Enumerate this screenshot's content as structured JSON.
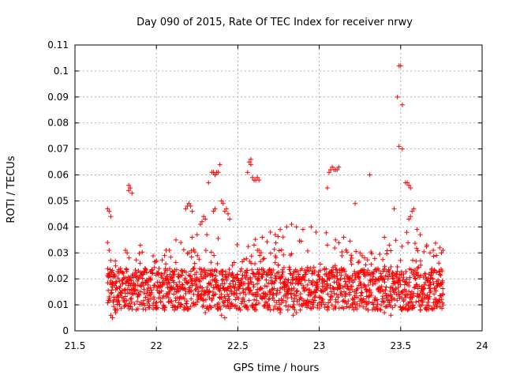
{
  "chart_data": {
    "type": "scatter",
    "title": "Day 090 of 2015, Rate Of TEC Index for receiver nrwy",
    "xlabel": "GPS time / hours",
    "ylabel": "ROTI / TECUs",
    "xlim": [
      21.5,
      24
    ],
    "ylim": [
      0,
      0.11
    ],
    "xticks": [
      21.5,
      22,
      22.5,
      23,
      23.5,
      24
    ],
    "xtick_labels": [
      "21.5",
      "22",
      "22.5",
      "23",
      "23.5",
      "24"
    ],
    "yticks": [
      0,
      0.01,
      0.02,
      0.03,
      0.04,
      0.05,
      0.06,
      0.07,
      0.08,
      0.09,
      0.1,
      0.11
    ],
    "ytick_labels": [
      "0",
      "0.01",
      "0.02",
      "0.03",
      "0.04",
      "0.05",
      "0.06",
      "0.07",
      "0.08",
      "0.09",
      "0.1",
      "0.11"
    ],
    "grid": true,
    "marker": "+",
    "color": "#ff0000",
    "x_range_of_points": [
      21.7,
      23.76
    ],
    "series": [
      {
        "name": "ROTI",
        "points": [
          [
            21.7,
            0.047
          ],
          [
            21.71,
            0.046
          ],
          [
            21.72,
            0.044
          ],
          [
            21.7,
            0.034
          ],
          [
            21.71,
            0.031
          ],
          [
            21.83,
            0.056
          ],
          [
            21.84,
            0.055
          ],
          [
            21.83,
            0.054
          ],
          [
            21.85,
            0.053
          ],
          [
            21.82,
            0.03
          ],
          [
            21.81,
            0.031
          ],
          [
            22.19,
            0.048
          ],
          [
            22.2,
            0.049
          ],
          [
            22.21,
            0.048
          ],
          [
            22.18,
            0.047
          ],
          [
            22.22,
            0.046
          ],
          [
            22.29,
            0.044
          ],
          [
            22.3,
            0.043
          ],
          [
            22.28,
            0.042
          ],
          [
            22.27,
            0.041
          ],
          [
            22.32,
            0.057
          ],
          [
            22.34,
            0.061
          ],
          [
            22.35,
            0.061
          ],
          [
            22.36,
            0.06
          ],
          [
            22.37,
            0.061
          ],
          [
            22.38,
            0.061
          ],
          [
            22.39,
            0.064
          ],
          [
            22.4,
            0.05
          ],
          [
            22.41,
            0.049
          ],
          [
            22.42,
            0.046
          ],
          [
            22.43,
            0.047
          ],
          [
            22.44,
            0.045
          ],
          [
            22.45,
            0.043
          ],
          [
            22.36,
            0.047
          ],
          [
            22.35,
            0.046
          ],
          [
            22.56,
            0.061
          ],
          [
            22.57,
            0.065
          ],
          [
            22.58,
            0.066
          ],
          [
            22.58,
            0.064
          ],
          [
            22.59,
            0.059
          ],
          [
            22.6,
            0.058
          ],
          [
            22.61,
            0.058
          ],
          [
            22.62,
            0.059
          ],
          [
            22.63,
            0.058
          ],
          [
            23.05,
            0.055
          ],
          [
            23.06,
            0.061
          ],
          [
            23.07,
            0.062
          ],
          [
            23.08,
            0.063
          ],
          [
            23.09,
            0.062
          ],
          [
            23.1,
            0.062
          ],
          [
            23.11,
            0.062
          ],
          [
            23.12,
            0.063
          ],
          [
            23.22,
            0.049
          ],
          [
            23.31,
            0.06
          ],
          [
            23.46,
            0.047
          ],
          [
            23.49,
            0.102
          ],
          [
            23.5,
            0.102
          ],
          [
            23.48,
            0.09
          ],
          [
            23.49,
            0.071
          ],
          [
            23.51,
            0.07
          ],
          [
            23.51,
            0.087
          ],
          [
            23.53,
            0.057
          ],
          [
            23.54,
            0.057
          ],
          [
            23.55,
            0.056
          ],
          [
            23.56,
            0.055
          ],
          [
            23.58,
            0.047
          ],
          [
            23.57,
            0.046
          ],
          [
            23.56,
            0.044
          ],
          [
            23.55,
            0.043
          ],
          [
            22.8,
            0.04
          ],
          [
            22.83,
            0.041
          ],
          [
            22.86,
            0.04
          ],
          [
            22.9,
            0.039
          ],
          [
            22.95,
            0.04
          ],
          [
            22.98,
            0.038
          ],
          [
            22.7,
            0.038
          ],
          [
            22.73,
            0.037
          ],
          [
            22.76,
            0.039
          ],
          [
            22.65,
            0.036
          ],
          [
            22.6,
            0.033
          ],
          [
            22.62,
            0.031
          ],
          [
            22.22,
            0.036
          ],
          [
            22.25,
            0.037
          ],
          [
            22.31,
            0.037
          ],
          [
            22.12,
            0.035
          ],
          [
            22.15,
            0.034
          ],
          [
            23.4,
            0.036
          ],
          [
            23.43,
            0.033
          ],
          [
            23.6,
            0.039
          ],
          [
            23.62,
            0.037
          ],
          [
            23.66,
            0.033
          ],
          [
            23.7,
            0.031
          ],
          [
            23.74,
            0.032
          ],
          [
            23.75,
            0.03
          ],
          [
            23.76,
            0.031
          ],
          [
            23.72,
            0.029
          ],
          [
            23.68,
            0.03
          ],
          [
            23.2,
            0.028
          ],
          [
            23.25,
            0.03
          ],
          [
            23.15,
            0.036
          ],
          [
            23.1,
            0.035
          ],
          [
            23.05,
            0.033
          ],
          [
            22.0,
            0.027
          ],
          [
            22.05,
            0.029
          ],
          [
            22.08,
            0.031
          ],
          [
            21.9,
            0.026
          ],
          [
            21.93,
            0.024
          ],
          [
            21.75,
            0.025
          ],
          [
            21.78,
            0.024
          ],
          [
            21.72,
            0.006
          ],
          [
            21.73,
            0.005
          ],
          [
            21.75,
            0.007
          ],
          [
            22.05,
            0.008
          ],
          [
            22.1,
            0.009
          ],
          [
            22.3,
            0.007
          ],
          [
            22.4,
            0.006
          ],
          [
            22.42,
            0.005
          ],
          [
            22.7,
            0.008
          ],
          [
            22.76,
            0.007
          ],
          [
            22.84,
            0.006
          ],
          [
            22.86,
            0.007
          ],
          [
            23.3,
            0.008
          ],
          [
            23.4,
            0.007
          ],
          [
            23.44,
            0.006
          ],
          [
            23.62,
            0.008
          ],
          [
            23.66,
            0.009
          ],
          [
            23.72,
            0.01
          ],
          [
            23.74,
            0.011
          ],
          [
            23.76,
            0.01
          ]
        ]
      }
    ]
  }
}
